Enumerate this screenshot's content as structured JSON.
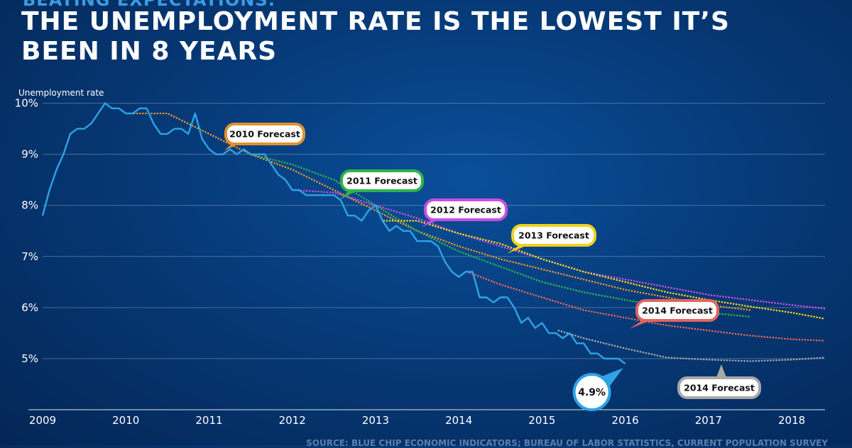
{
  "header": {
    "kicker": "BEATING EXPECTATIONS:",
    "title": "THE UNEMPLOYMENT RATE IS THE LOWEST IT’S BEEN IN 8 YEARS"
  },
  "footer": {
    "source": "SOURCE: BLUE CHIP ECONOMIC INDICATORS; BUREAU OF LABOR STATISTICS, CURRENT POPULATION SURVEY"
  },
  "chart_data": {
    "type": "line",
    "title": "THE UNEMPLOYMENT RATE IS THE LOWEST IT’S BEEN IN 8 YEARS",
    "ylabel": "Unemployment rate",
    "xlabel": "",
    "xlim": [
      2009.0,
      2018.4
    ],
    "ylim": [
      4.0,
      10.3
    ],
    "x_ticks": [
      2009,
      2010,
      2011,
      2012,
      2013,
      2014,
      2015,
      2016,
      2017,
      2018
    ],
    "x_tick_labels": [
      "2009",
      "2010",
      "2011",
      "2012",
      "2013",
      "2014",
      "2015",
      "2016",
      "2017",
      "2018"
    ],
    "y_ticks": [
      5,
      6,
      7,
      8,
      9,
      10
    ],
    "y_tick_labels": [
      "5%",
      "6%",
      "7%",
      "8%",
      "9%",
      "10%"
    ],
    "grid": "horizontal",
    "colors": {
      "actual": "#2ea3e6",
      "f2010": "#e0922f",
      "f2011": "#2fb34a",
      "f2012": "#c94ee3",
      "f2013": "#f1d21a",
      "f2014a": "#e4655e",
      "f2014b": "#a8a8a8"
    },
    "series": [
      {
        "key": "actual",
        "style": "solid",
        "x": [
          2009.0,
          2009.083,
          2009.167,
          2009.25,
          2009.333,
          2009.417,
          2009.5,
          2009.583,
          2009.667,
          2009.75,
          2009.833,
          2009.917,
          2010.0,
          2010.083,
          2010.167,
          2010.25,
          2010.333,
          2010.417,
          2010.5,
          2010.583,
          2010.667,
          2010.75,
          2010.833,
          2010.917,
          2011.0,
          2011.083,
          2011.167,
          2011.25,
          2011.333,
          2011.417,
          2011.5,
          2011.583,
          2011.667,
          2011.75,
          2011.833,
          2011.917,
          2012.0,
          2012.083,
          2012.167,
          2012.25,
          2012.333,
          2012.417,
          2012.5,
          2012.583,
          2012.667,
          2012.75,
          2012.833,
          2012.917,
          2013.0,
          2013.083,
          2013.167,
          2013.25,
          2013.333,
          2013.417,
          2013.5,
          2013.583,
          2013.667,
          2013.75,
          2013.833,
          2013.917,
          2014.0,
          2014.083,
          2014.167,
          2014.25,
          2014.333,
          2014.417,
          2014.5,
          2014.583,
          2014.667,
          2014.75,
          2014.833,
          2014.917,
          2015.0,
          2015.083,
          2015.167,
          2015.25,
          2015.333,
          2015.417,
          2015.5,
          2015.583,
          2015.667,
          2015.75,
          2015.833,
          2015.917,
          2016.0
        ],
        "y": [
          7.8,
          8.3,
          8.7,
          9.0,
          9.4,
          9.5,
          9.5,
          9.6,
          9.8,
          10.0,
          9.9,
          9.9,
          9.8,
          9.8,
          9.9,
          9.9,
          9.6,
          9.4,
          9.4,
          9.5,
          9.5,
          9.4,
          9.8,
          9.3,
          9.1,
          9.0,
          9.0,
          9.1,
          9.0,
          9.1,
          9.0,
          9.0,
          9.0,
          8.8,
          8.6,
          8.5,
          8.3,
          8.3,
          8.2,
          8.2,
          8.2,
          8.2,
          8.2,
          8.1,
          7.8,
          7.8,
          7.7,
          7.9,
          8.0,
          7.7,
          7.5,
          7.6,
          7.5,
          7.5,
          7.3,
          7.3,
          7.3,
          7.2,
          6.9,
          6.7,
          6.6,
          6.7,
          6.7,
          6.2,
          6.2,
          6.1,
          6.2,
          6.2,
          6.0,
          5.7,
          5.8,
          5.6,
          5.7,
          5.5,
          5.5,
          5.4,
          5.5,
          5.3,
          5.3,
          5.1,
          5.1,
          5.0,
          5.0,
          5.0,
          4.9
        ]
      },
      {
        "key": "f2010",
        "name": "2010 Forecast",
        "style": "dotted",
        "x": [
          2010.1,
          2010.5,
          2011.0,
          2011.5,
          2012.0,
          2012.5,
          2013.0,
          2013.5,
          2014.0,
          2014.5,
          2015.0,
          2015.5,
          2016.0,
          2016.5,
          2017.0,
          2017.5
        ],
        "y": [
          9.8,
          9.8,
          9.4,
          9.0,
          8.7,
          8.3,
          7.9,
          7.5,
          7.2,
          6.95,
          6.75,
          6.55,
          6.35,
          6.2,
          6.05,
          5.95
        ]
      },
      {
        "key": "f2011",
        "name": "2011 Forecast",
        "style": "dotted",
        "x": [
          2011.5,
          2012.0,
          2012.5,
          2013.0,
          2013.5,
          2014.0,
          2014.5,
          2015.0,
          2015.5,
          2016.0,
          2016.5,
          2017.0,
          2017.5
        ],
        "y": [
          9.0,
          8.8,
          8.5,
          8.0,
          7.5,
          7.1,
          6.8,
          6.5,
          6.3,
          6.15,
          6.0,
          5.9,
          5.82
        ]
      },
      {
        "key": "f2012",
        "name": "2012 Forecast",
        "style": "dotted",
        "x": [
          2012.0,
          2012.5,
          2013.0,
          2013.5,
          2014.0,
          2014.5,
          2015.0,
          2015.5,
          2016.0,
          2016.5,
          2017.0,
          2017.5,
          2018.0,
          2018.4
        ],
        "y": [
          8.3,
          8.25,
          8.0,
          7.75,
          7.45,
          7.2,
          6.95,
          6.7,
          6.55,
          6.4,
          6.25,
          6.15,
          6.05,
          5.98
        ]
      },
      {
        "key": "f2013",
        "name": "2013 Forecast",
        "style": "dotted",
        "x": [
          2013.1,
          2013.5,
          2014.0,
          2014.5,
          2015.0,
          2015.5,
          2016.0,
          2016.5,
          2017.0,
          2017.5,
          2018.0,
          2018.4
        ],
        "y": [
          7.7,
          7.7,
          7.45,
          7.25,
          6.95,
          6.7,
          6.5,
          6.3,
          6.15,
          6.02,
          5.9,
          5.78
        ]
      },
      {
        "key": "f2014a",
        "name": "2014 Forecast",
        "style": "dotted",
        "x": [
          2014.1,
          2014.5,
          2015.0,
          2015.5,
          2016.0,
          2016.5,
          2017.0,
          2017.5,
          2018.0,
          2018.4
        ],
        "y": [
          6.7,
          6.45,
          6.2,
          5.95,
          5.8,
          5.65,
          5.55,
          5.45,
          5.38,
          5.35
        ]
      },
      {
        "key": "f2014b",
        "name": "2014 Forecast",
        "style": "dotted",
        "x": [
          2015.2,
          2015.5,
          2016.0,
          2016.5,
          2017.0,
          2017.5,
          2018.0,
          2018.4
        ],
        "y": [
          5.55,
          5.4,
          5.2,
          5.02,
          4.98,
          4.95,
          4.98,
          5.02
        ]
      }
    ],
    "labels": [
      {
        "series": "f2010",
        "text": "2010 Forecast"
      },
      {
        "series": "f2011",
        "text": "2011 Forecast"
      },
      {
        "series": "f2012",
        "text": "2012 Forecast"
      },
      {
        "series": "f2013",
        "text": "2013 Forecast"
      },
      {
        "series": "f2014a",
        "text": "2014 Forecast"
      },
      {
        "series": "f2014b",
        "text": "2014 Forecast"
      }
    ],
    "annotation": {
      "text": "4.9%",
      "x": 2016.0,
      "y": 4.9
    }
  }
}
